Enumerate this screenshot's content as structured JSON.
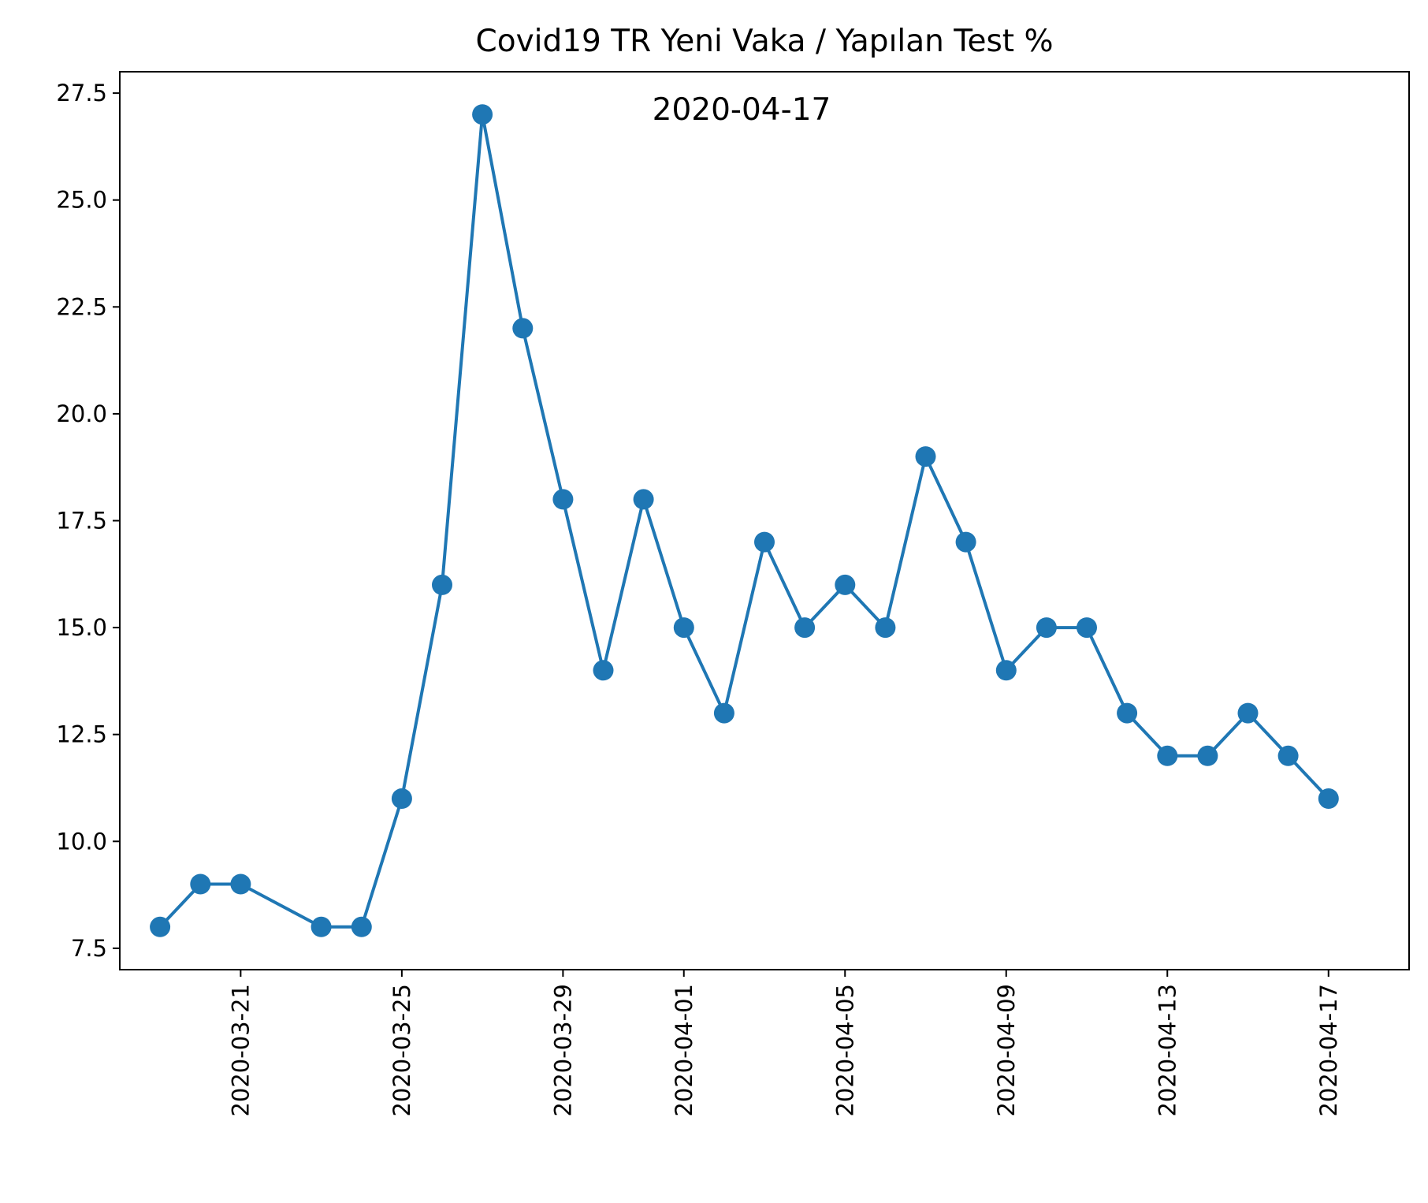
{
  "colors": {
    "series": "#1f77b4",
    "axis": "#000000",
    "background": "#ffffff"
  },
  "chart_data": {
    "type": "line",
    "title": "Covid19 TR Yeni Vaka / Yapılan Test %",
    "annotation": "2020-04-17",
    "xlabel": "",
    "ylabel": "",
    "grid": false,
    "ylim": [
      7.0,
      28.0
    ],
    "xlim": [
      "2020-03-18",
      "2020-04-19"
    ],
    "yticks": [
      7.5,
      10.0,
      12.5,
      15.0,
      17.5,
      20.0,
      22.5,
      25.0,
      27.5
    ],
    "ytick_labels": [
      "7.5",
      "10.0",
      "12.5",
      "15.0",
      "17.5",
      "20.0",
      "22.5",
      "25.0",
      "27.5"
    ],
    "xticks": [
      "2020-03-21",
      "2020-03-25",
      "2020-03-29",
      "2020-04-01",
      "2020-04-05",
      "2020-04-09",
      "2020-04-13",
      "2020-04-17"
    ],
    "marker": "circle",
    "series": [
      {
        "x": [
          "2020-03-19",
          "2020-03-20",
          "2020-03-21",
          "2020-03-23",
          "2020-03-24",
          "2020-03-25",
          "2020-03-26",
          "2020-03-27",
          "2020-03-28",
          "2020-03-29",
          "2020-03-30",
          "2020-03-31",
          "2020-04-01",
          "2020-04-02",
          "2020-04-03",
          "2020-04-04",
          "2020-04-05",
          "2020-04-06",
          "2020-04-07",
          "2020-04-08",
          "2020-04-09",
          "2020-04-10",
          "2020-04-11",
          "2020-04-12",
          "2020-04-13",
          "2020-04-14",
          "2020-04-15",
          "2020-04-16",
          "2020-04-17"
        ],
        "values": [
          8,
          9,
          9,
          8,
          8,
          11,
          16,
          27,
          22,
          18,
          14,
          18,
          15,
          13,
          17,
          15,
          16,
          15,
          19,
          17,
          14,
          15,
          15,
          13,
          12,
          12,
          13,
          12,
          11
        ]
      }
    ]
  }
}
